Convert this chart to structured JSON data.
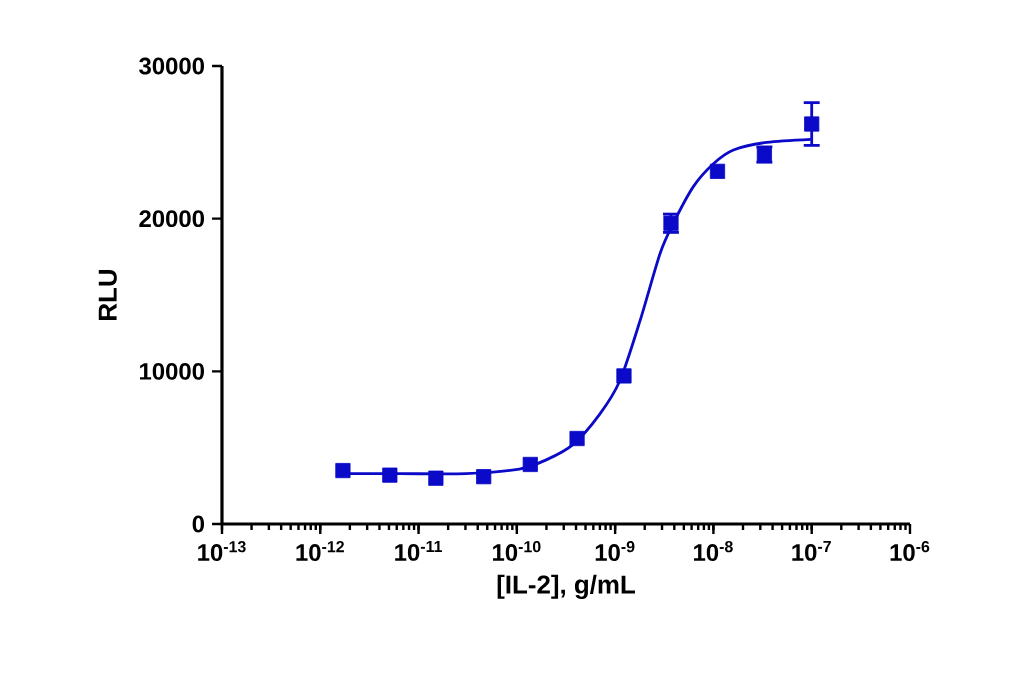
{
  "chart_data": {
    "type": "scatter",
    "xlabel": "[IL-2], g/mL",
    "ylabel": "RLU",
    "log": "x",
    "grid": false,
    "marker": "square",
    "xlim": [
      1e-13,
      1e-06
    ],
    "ylim": [
      0,
      30000
    ],
    "xticks": [
      {
        "value": 1e-13,
        "label": "10$^{-13}$"
      },
      {
        "value": 1e-12,
        "label": "10$^{-12}$"
      },
      {
        "value": 1e-11,
        "label": "10$^{-11}$"
      },
      {
        "value": 1e-10,
        "label": "10$^{-10}$"
      },
      {
        "value": 1e-09,
        "label": "10$^{-9}$"
      },
      {
        "value": 1e-08,
        "label": "10$^{-8}$"
      },
      {
        "value": 1e-07,
        "label": "10$^{-7}$"
      },
      {
        "value": 1e-06,
        "label": "10$^{-6}$"
      }
    ],
    "yticks": [
      0,
      10000,
      20000,
      30000
    ],
    "series": [
      {
        "color": "#0a0ac8",
        "x": [
          1.7e-12,
          5.1e-12,
          1.5e-11,
          4.6e-11,
          1.37e-10,
          4.1e-10,
          1.23e-09,
          3.7e-09,
          1.1e-08,
          3.3e-08,
          1e-07
        ],
        "values": [
          3500,
          3200,
          3000,
          3100,
          3900,
          5600,
          9700,
          19700,
          23100,
          24200,
          26200
        ],
        "errors": [
          null,
          null,
          null,
          null,
          null,
          null,
          null,
          600,
          null,
          500,
          1400
        ]
      },
      {
        "type": "line",
        "color": "#0a0ac8",
        "marker": "none",
        "x": [
          1.6e-12,
          6.35e-12,
          3.04e-11,
          1.06e-10,
          1.99e-10,
          3.72e-10,
          6.98e-10,
          1.12e-09,
          1.79e-09,
          2.86e-09,
          3.91e-09,
          6.25e-09,
          1e-08,
          1.6e-08,
          3.5e-08,
          9.8e-08
        ],
        "values": [
          3300,
          3300,
          3300,
          3600,
          4200,
          5200,
          7200,
          9400,
          13300,
          17700,
          19700,
          22100,
          23600,
          24500,
          25000,
          25200
        ]
      }
    ]
  }
}
